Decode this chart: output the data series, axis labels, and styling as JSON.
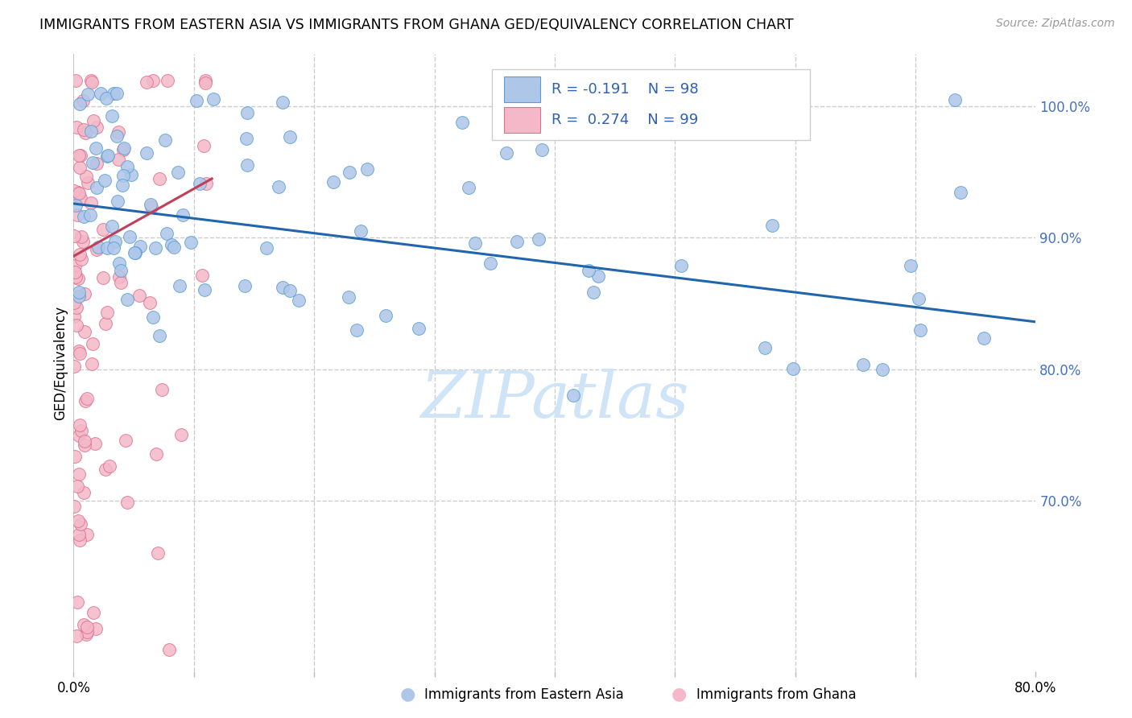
{
  "title": "IMMIGRANTS FROM EASTERN ASIA VS IMMIGRANTS FROM GHANA GED/EQUIVALENCY CORRELATION CHART",
  "source": "Source: ZipAtlas.com",
  "ylabel": "GED/Equivalency",
  "y_tick_labels": [
    "100.0%",
    "90.0%",
    "80.0%",
    "70.0%"
  ],
  "y_tick_values": [
    1.0,
    0.9,
    0.8,
    0.7
  ],
  "legend_blue_r": "R = -0.191",
  "legend_blue_n": "N = 98",
  "legend_pink_r": "R = 0.274",
  "legend_pink_n": "N = 99",
  "blue_color": "#aec6e8",
  "blue_edge_color": "#5a9fd4",
  "blue_line_color": "#2166ac",
  "pink_color": "#f4b8c8",
  "pink_edge_color": "#e07090",
  "pink_line_color": "#c0405a",
  "grid_color": "#cccccc",
  "watermark_color": "#d0e4f7",
  "xlim": [
    0.0,
    0.8
  ],
  "ylim": [
    0.57,
    1.04
  ],
  "blue_trend": [
    0.0,
    0.926,
    0.8,
    0.836
  ],
  "pink_trend": [
    0.0,
    0.886,
    0.115,
    0.945
  ]
}
